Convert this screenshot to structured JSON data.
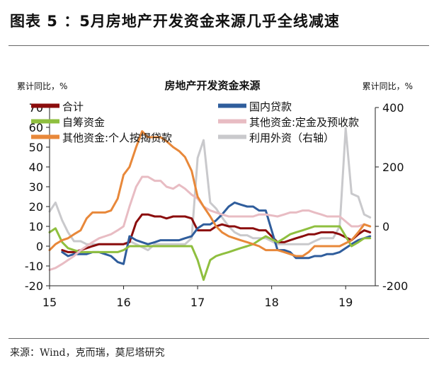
{
  "figure": {
    "title": "图表 5 ：5月房地产开发资金来源几乎全线减速",
    "source": "来源：Wind，克而瑞，莫尼塔研究"
  },
  "chart_data": {
    "type": "line",
    "title": "房地产开发资金来源",
    "ylabel_left": "累计同比，%",
    "ylabel_right": "累计同比，%",
    "ylim_left": [
      -20,
      70
    ],
    "ylim_right": [
      -200,
      400
    ],
    "yticks_left": [
      -20,
      -10,
      0,
      10,
      20,
      30,
      40,
      50,
      60,
      70
    ],
    "yticks_right": [
      -200,
      0,
      200,
      400
    ],
    "xlim": [
      15.0,
      19.4
    ],
    "xticks": [
      {
        "v": 15,
        "label": "15"
      },
      {
        "v": 16,
        "label": "16"
      },
      {
        "v": 17,
        "label": "17"
      },
      {
        "v": 18,
        "label": "18"
      },
      {
        "v": 19,
        "label": "19"
      }
    ],
    "grid": false,
    "legend_position": "top",
    "series": [
      {
        "name": "合计",
        "color": "#8b0d0d",
        "axis": "left",
        "points": [
          [
            15.17,
            -2
          ],
          [
            15.25,
            -3
          ],
          [
            15.33,
            -3
          ],
          [
            15.42,
            -2
          ],
          [
            15.5,
            -1
          ],
          [
            15.58,
            0
          ],
          [
            15.67,
            1
          ],
          [
            15.75,
            1
          ],
          [
            15.83,
            1
          ],
          [
            15.92,
            1
          ],
          [
            16.0,
            1
          ],
          [
            16.08,
            2
          ],
          [
            16.17,
            12
          ],
          [
            16.25,
            16
          ],
          [
            16.33,
            16
          ],
          [
            16.42,
            15
          ],
          [
            16.5,
            15
          ],
          [
            16.58,
            14
          ],
          [
            16.67,
            15
          ],
          [
            16.75,
            15
          ],
          [
            16.83,
            15
          ],
          [
            16.92,
            14
          ],
          [
            17.0,
            8
          ],
          [
            17.08,
            8
          ],
          [
            17.17,
            8
          ],
          [
            17.25,
            10
          ],
          [
            17.33,
            11
          ],
          [
            17.42,
            10
          ],
          [
            17.5,
            10
          ],
          [
            17.58,
            9
          ],
          [
            17.67,
            9
          ],
          [
            17.75,
            9
          ],
          [
            17.83,
            8
          ],
          [
            17.92,
            8
          ],
          [
            18.08,
            2
          ],
          [
            18.17,
            2
          ],
          [
            18.25,
            3
          ],
          [
            18.33,
            4
          ],
          [
            18.42,
            5
          ],
          [
            18.5,
            6
          ],
          [
            18.58,
            6
          ],
          [
            18.67,
            7
          ],
          [
            18.75,
            7
          ],
          [
            18.83,
            7
          ],
          [
            18.92,
            6
          ],
          [
            19.08,
            3
          ],
          [
            19.17,
            6
          ],
          [
            19.25,
            8
          ],
          [
            19.33,
            7
          ]
        ]
      },
      {
        "name": "国内贷款",
        "color": "#2f5d9c",
        "axis": "left",
        "points": [
          [
            15.17,
            -3
          ],
          [
            15.25,
            -5
          ],
          [
            15.33,
            -4
          ],
          [
            15.42,
            -4
          ],
          [
            15.5,
            -4
          ],
          [
            15.58,
            -3
          ],
          [
            15.67,
            -3
          ],
          [
            15.75,
            -4
          ],
          [
            15.83,
            -5
          ],
          [
            15.92,
            -8
          ],
          [
            16.0,
            -9
          ],
          [
            16.08,
            5
          ],
          [
            16.17,
            3
          ],
          [
            16.25,
            2
          ],
          [
            16.33,
            1
          ],
          [
            16.42,
            2
          ],
          [
            16.5,
            3
          ],
          [
            16.58,
            3
          ],
          [
            16.67,
            3
          ],
          [
            16.75,
            3
          ],
          [
            16.83,
            4
          ],
          [
            16.92,
            5
          ],
          [
            17.0,
            9
          ],
          [
            17.08,
            11
          ],
          [
            17.17,
            11
          ],
          [
            17.25,
            13
          ],
          [
            17.33,
            16
          ],
          [
            17.42,
            20
          ],
          [
            17.5,
            22
          ],
          [
            17.58,
            21
          ],
          [
            17.67,
            20
          ],
          [
            17.75,
            20
          ],
          [
            17.83,
            18
          ],
          [
            17.92,
            18
          ],
          [
            18.08,
            -2
          ],
          [
            18.17,
            -2
          ],
          [
            18.25,
            -3
          ],
          [
            18.33,
            -6
          ],
          [
            18.42,
            -6
          ],
          [
            18.5,
            -6
          ],
          [
            18.58,
            -5
          ],
          [
            18.67,
            -5
          ],
          [
            18.75,
            -4
          ],
          [
            18.83,
            -4
          ],
          [
            18.92,
            -3
          ],
          [
            19.08,
            1
          ],
          [
            19.17,
            3
          ],
          [
            19.25,
            4
          ],
          [
            19.33,
            5
          ]
        ]
      },
      {
        "name": "自筹资金",
        "color": "#8fbf3f",
        "axis": "left",
        "points": [
          [
            15.0,
            7
          ],
          [
            15.08,
            9
          ],
          [
            15.17,
            2
          ],
          [
            15.25,
            -1
          ],
          [
            15.33,
            -2
          ],
          [
            15.42,
            -3
          ],
          [
            15.5,
            -3
          ],
          [
            15.58,
            -3
          ],
          [
            15.67,
            -3
          ],
          [
            15.75,
            -3
          ],
          [
            15.83,
            -3
          ],
          [
            15.92,
            -3
          ],
          [
            16.0,
            -2
          ],
          [
            16.08,
            0
          ],
          [
            16.17,
            0
          ],
          [
            16.25,
            0
          ],
          [
            16.33,
            0
          ],
          [
            16.42,
            0
          ],
          [
            16.5,
            0
          ],
          [
            16.58,
            0
          ],
          [
            16.67,
            0
          ],
          [
            16.75,
            0
          ],
          [
            16.83,
            0
          ],
          [
            16.92,
            0
          ],
          [
            17.0,
            -7
          ],
          [
            17.08,
            -17
          ],
          [
            17.17,
            -7
          ],
          [
            17.25,
            -5
          ],
          [
            17.33,
            -4
          ],
          [
            17.42,
            -3
          ],
          [
            17.5,
            -2
          ],
          [
            17.58,
            -1
          ],
          [
            17.67,
            0
          ],
          [
            17.75,
            1
          ],
          [
            17.83,
            3
          ],
          [
            17.92,
            5
          ],
          [
            18.08,
            2
          ],
          [
            18.17,
            4
          ],
          [
            18.25,
            6
          ],
          [
            18.33,
            7
          ],
          [
            18.42,
            8
          ],
          [
            18.5,
            9
          ],
          [
            18.58,
            10
          ],
          [
            18.67,
            10
          ],
          [
            18.75,
            10
          ],
          [
            18.83,
            10
          ],
          [
            18.92,
            10
          ],
          [
            19.08,
            0
          ],
          [
            19.17,
            2
          ],
          [
            19.25,
            4
          ],
          [
            19.33,
            4
          ]
        ]
      },
      {
        "name": "其他资金:定金及预收款",
        "color": "#e8bcc3",
        "axis": "left",
        "points": [
          [
            15.0,
            -12
          ],
          [
            15.08,
            -11
          ],
          [
            15.17,
            -9
          ],
          [
            15.25,
            -7
          ],
          [
            15.33,
            -5
          ],
          [
            15.42,
            -2
          ],
          [
            15.5,
            0
          ],
          [
            15.58,
            2
          ],
          [
            15.67,
            4
          ],
          [
            15.75,
            5
          ],
          [
            15.83,
            6
          ],
          [
            15.92,
            8
          ],
          [
            16.0,
            10
          ],
          [
            16.08,
            20
          ],
          [
            16.17,
            30
          ],
          [
            16.25,
            35
          ],
          [
            16.33,
            35
          ],
          [
            16.42,
            33
          ],
          [
            16.5,
            33
          ],
          [
            16.58,
            30
          ],
          [
            16.67,
            29
          ],
          [
            16.75,
            31
          ],
          [
            16.83,
            29
          ],
          [
            16.92,
            26
          ],
          [
            17.0,
            24
          ],
          [
            17.08,
            20
          ],
          [
            17.17,
            18
          ],
          [
            17.25,
            17
          ],
          [
            17.33,
            16
          ],
          [
            17.42,
            15
          ],
          [
            17.5,
            15
          ],
          [
            17.58,
            15
          ],
          [
            17.67,
            15
          ],
          [
            17.75,
            15
          ],
          [
            17.83,
            16
          ],
          [
            17.92,
            16
          ],
          [
            18.08,
            15
          ],
          [
            18.17,
            16
          ],
          [
            18.25,
            17
          ],
          [
            18.33,
            17
          ],
          [
            18.42,
            18
          ],
          [
            18.5,
            18
          ],
          [
            18.58,
            17
          ],
          [
            18.67,
            16
          ],
          [
            18.75,
            15
          ],
          [
            18.83,
            15
          ],
          [
            18.92,
            15
          ],
          [
            19.08,
            10
          ],
          [
            19.17,
            10
          ],
          [
            19.25,
            11
          ],
          [
            19.33,
            10
          ]
        ]
      },
      {
        "name": "其他资金:个人按揭贷款",
        "color": "#e8883a",
        "axis": "left",
        "points": [
          [
            15.0,
            -2
          ],
          [
            15.08,
            1
          ],
          [
            15.17,
            3
          ],
          [
            15.25,
            4
          ],
          [
            15.33,
            6
          ],
          [
            15.42,
            8
          ],
          [
            15.5,
            14
          ],
          [
            15.58,
            17
          ],
          [
            15.67,
            17
          ],
          [
            15.75,
            17
          ],
          [
            15.83,
            18
          ],
          [
            15.92,
            24
          ],
          [
            16.0,
            36
          ],
          [
            16.08,
            40
          ],
          [
            16.17,
            50
          ],
          [
            16.25,
            58
          ],
          [
            16.33,
            55
          ],
          [
            16.42,
            55
          ],
          [
            16.5,
            55
          ],
          [
            16.58,
            53
          ],
          [
            16.67,
            50
          ],
          [
            16.75,
            48
          ],
          [
            16.83,
            45
          ],
          [
            16.92,
            38
          ],
          [
            17.0,
            25
          ],
          [
            17.08,
            20
          ],
          [
            17.17,
            15
          ],
          [
            17.25,
            10
          ],
          [
            17.33,
            7
          ],
          [
            17.42,
            5
          ],
          [
            17.5,
            4
          ],
          [
            17.58,
            3
          ],
          [
            17.67,
            2
          ],
          [
            17.75,
            1
          ],
          [
            17.83,
            0
          ],
          [
            17.92,
            -2
          ],
          [
            18.08,
            -2
          ],
          [
            18.17,
            -3
          ],
          [
            18.25,
            -4
          ],
          [
            18.33,
            -5
          ],
          [
            18.42,
            -5
          ],
          [
            18.5,
            -3
          ],
          [
            18.58,
            0
          ],
          [
            18.67,
            0
          ],
          [
            18.75,
            0
          ],
          [
            18.83,
            0
          ],
          [
            18.92,
            0
          ],
          [
            19.08,
            3
          ],
          [
            19.17,
            7
          ],
          [
            19.25,
            11
          ],
          [
            19.33,
            10
          ]
        ]
      },
      {
        "name": "利用外资（右轴）",
        "color": "#c9c9cc",
        "axis": "right",
        "points": [
          [
            15.0,
            50
          ],
          [
            15.08,
            80
          ],
          [
            15.17,
            20
          ],
          [
            15.25,
            -20
          ],
          [
            15.33,
            -50
          ],
          [
            15.42,
            -50
          ],
          [
            15.5,
            -60
          ],
          [
            15.58,
            -60
          ],
          [
            15.67,
            -60
          ],
          [
            15.75,
            -60
          ],
          [
            15.83,
            -60
          ],
          [
            15.92,
            -60
          ],
          [
            16.0,
            -60
          ],
          [
            16.08,
            -50
          ],
          [
            16.17,
            -60
          ],
          [
            16.25,
            -70
          ],
          [
            16.33,
            -80
          ],
          [
            16.42,
            -60
          ],
          [
            16.5,
            -60
          ],
          [
            16.58,
            -60
          ],
          [
            16.67,
            -60
          ],
          [
            16.75,
            -60
          ],
          [
            16.83,
            -60
          ],
          [
            16.92,
            -40
          ],
          [
            17.0,
            230
          ],
          [
            17.08,
            290
          ],
          [
            17.17,
            80
          ],
          [
            17.25,
            60
          ],
          [
            17.33,
            30
          ],
          [
            17.42,
            0
          ],
          [
            17.5,
            -20
          ],
          [
            17.58,
            -30
          ],
          [
            17.67,
            -30
          ],
          [
            17.75,
            -40
          ],
          [
            17.83,
            -40
          ],
          [
            17.92,
            -40
          ],
          [
            18.08,
            -60
          ],
          [
            18.17,
            -60
          ],
          [
            18.25,
            -60
          ],
          [
            18.33,
            -60
          ],
          [
            18.42,
            -60
          ],
          [
            18.5,
            -60
          ],
          [
            18.58,
            -50
          ],
          [
            18.67,
            -40
          ],
          [
            18.75,
            -40
          ],
          [
            18.83,
            -40
          ],
          [
            18.92,
            0
          ],
          [
            19.0,
            330
          ],
          [
            19.08,
            110
          ],
          [
            19.17,
            100
          ],
          [
            19.25,
            40
          ],
          [
            19.33,
            30
          ]
        ]
      }
    ]
  }
}
